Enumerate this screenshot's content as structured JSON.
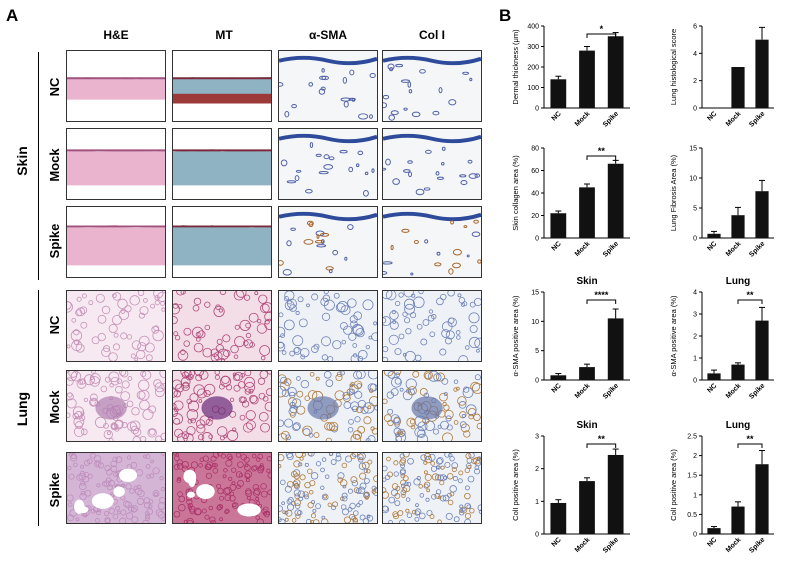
{
  "figure": {
    "panel_a_label": "A",
    "panel_b_label": "B",
    "stain_columns": [
      "H&E",
      "MT",
      "α-SMA",
      "Col I"
    ],
    "groups": [
      {
        "name": "Skin",
        "rows": [
          "NC",
          "Mock",
          "Spike"
        ]
      },
      {
        "name": "Lung",
        "rows": [
          "NC",
          "Mock",
          "Spike"
        ]
      }
    ],
    "row_titles": {
      "skin": "Skin",
      "lung": "Lung"
    },
    "colors": {
      "he_skin": "#e7a9c6",
      "mt_skin": "#7fa8b8",
      "ihc_bg": "#e8eef0",
      "lung_he": "#c98fb8",
      "lung_mt": "#b0307a",
      "bar": "#111111"
    }
  },
  "chart_data": [
    {
      "type": "bar",
      "title": "",
      "ylabel": "Dermal thickness (μm)",
      "categories": [
        "NC",
        "Mock",
        "Spike"
      ],
      "values": [
        140,
        280,
        350
      ],
      "errors": [
        15,
        20,
        18
      ],
      "ylim": [
        0,
        400
      ],
      "yticks": [
        0,
        100,
        200,
        300,
        400
      ],
      "significance": [
        {
          "from": 1,
          "to": 2,
          "label": "*"
        }
      ]
    },
    {
      "type": "bar",
      "title": "",
      "ylabel": "Lung histological score",
      "categories": [
        "NC",
        "Mock",
        "Spike"
      ],
      "values": [
        0,
        3,
        5
      ],
      "errors": [
        0,
        0,
        0.9
      ],
      "ylim": [
        0,
        6
      ],
      "yticks": [
        0,
        2,
        4,
        6
      ],
      "significance": []
    },
    {
      "type": "bar",
      "title": "",
      "ylabel": "Skin collagen area (%)",
      "categories": [
        "NC",
        "Mock",
        "Spike"
      ],
      "values": [
        22,
        45,
        66
      ],
      "errors": [
        2,
        3,
        3
      ],
      "ylim": [
        0,
        80
      ],
      "yticks": [
        0,
        20,
        40,
        60,
        80
      ],
      "significance": [
        {
          "from": 1,
          "to": 2,
          "label": "**"
        }
      ]
    },
    {
      "type": "bar",
      "title": "",
      "ylabel": "Lung Fibrosis Area (%)",
      "categories": [
        "NC",
        "Mock",
        "Spike"
      ],
      "values": [
        0.7,
        3.8,
        7.8
      ],
      "errors": [
        0.4,
        1.3,
        1.8
      ],
      "ylim": [
        0,
        15
      ],
      "yticks": [
        0,
        5,
        10,
        15
      ],
      "significance": []
    },
    {
      "type": "bar",
      "title": "Skin",
      "ylabel": "α-SMA positive area  (%)",
      "categories": [
        "NC",
        "Mock",
        "Spike"
      ],
      "values": [
        0.8,
        2.2,
        10.5
      ],
      "errors": [
        0.3,
        0.5,
        1.6
      ],
      "ylim": [
        0,
        15
      ],
      "yticks": [
        0,
        5,
        10,
        15
      ],
      "significance": [
        {
          "from": 1,
          "to": 2,
          "label": "****"
        }
      ]
    },
    {
      "type": "bar",
      "title": "Lung",
      "ylabel": "α-SMA positive area  (%)",
      "categories": [
        "NC",
        "Mock",
        "Spike"
      ],
      "values": [
        0.3,
        0.7,
        2.7
      ],
      "errors": [
        0.15,
        0.08,
        0.6
      ],
      "ylim": [
        0,
        4
      ],
      "yticks": [
        0,
        1,
        2,
        3,
        4
      ],
      "significance": [
        {
          "from": 1,
          "to": 2,
          "label": "**"
        }
      ]
    },
    {
      "type": "bar",
      "title": "Skin",
      "ylabel": "ColI positive area (%)",
      "categories": [
        "NC",
        "Mock",
        "Spike"
      ],
      "values": [
        0.95,
        1.62,
        2.42
      ],
      "errors": [
        0.1,
        0.1,
        0.18
      ],
      "ylim": [
        0,
        3
      ],
      "yticks": [
        0,
        1,
        2,
        3
      ],
      "significance": [
        {
          "from": 1,
          "to": 2,
          "label": "**"
        }
      ]
    },
    {
      "type": "bar",
      "title": "Lung",
      "ylabel": "ColI positive area (%)",
      "categories": [
        "NC",
        "Mock",
        "Spike"
      ],
      "values": [
        0.15,
        0.7,
        1.78
      ],
      "errors": [
        0.04,
        0.12,
        0.35
      ],
      "ylim": [
        0,
        2.5
      ],
      "yticks": [
        0,
        0.5,
        1,
        1.5,
        2,
        2.5
      ],
      "significance": [
        {
          "from": 1,
          "to": 2,
          "label": "**"
        }
      ]
    }
  ]
}
